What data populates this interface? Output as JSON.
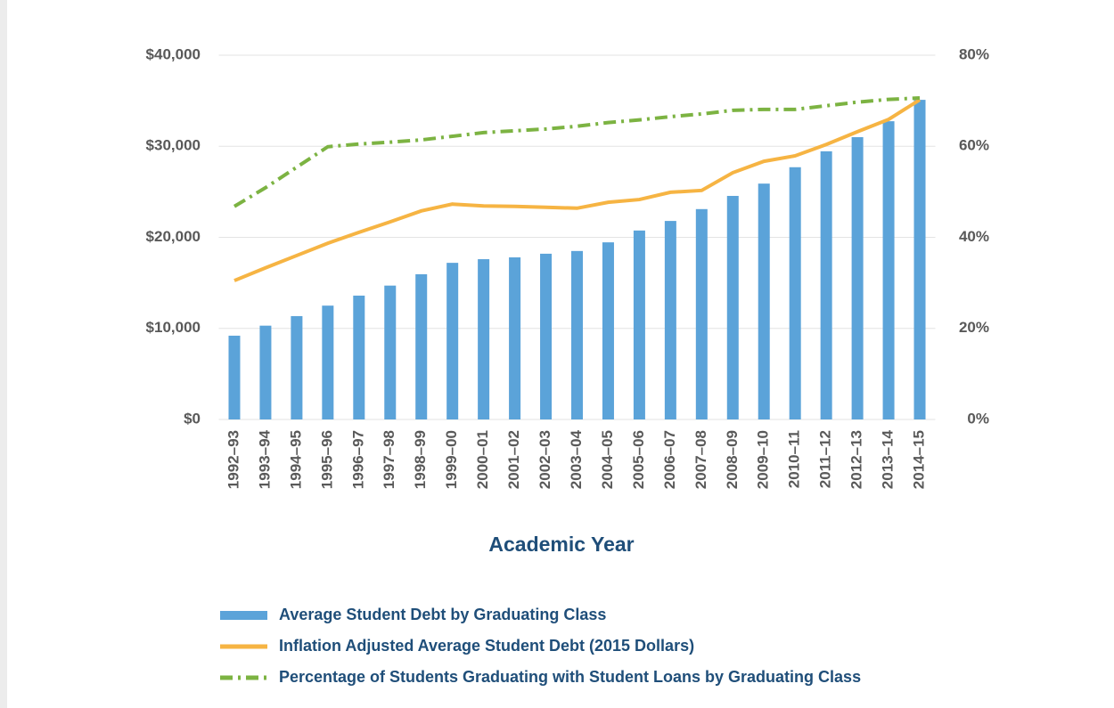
{
  "chart_data": {
    "type": "bar",
    "x_label": "Academic Year",
    "categories": [
      "1992–93",
      "1993–94",
      "1994–95",
      "1995–96",
      "1996–97",
      "1997–98",
      "1998–99",
      "1999–00",
      "2000–01",
      "2001–02",
      "2002–03",
      "2003–04",
      "2004–05",
      "2005–06",
      "2006–07",
      "2007–08",
      "2008–09",
      "2009–10",
      "2010–11",
      "2011–12",
      "2012–13",
      "2013–14",
      "2014–15"
    ],
    "series": [
      {
        "name": "Average Student Debt by Graduating Class",
        "type": "bar",
        "color": "#5ba3d9",
        "values": [
          9200,
          10300,
          11350,
          12500,
          13600,
          14700,
          15950,
          17200,
          17600,
          17800,
          18200,
          18500,
          19450,
          20750,
          21800,
          23100,
          24550,
          25900,
          27700,
          29450,
          31000,
          32750,
          35100
        ]
      },
      {
        "name": "Inflation Adjusted Average Student Debt (2015 Dollars)",
        "type": "line",
        "color": "#f6b443",
        "linestyle": "solid",
        "values": [
          15250,
          16650,
          18000,
          19350,
          20550,
          21700,
          22900,
          23650,
          23450,
          23400,
          23300,
          23200,
          23850,
          24150,
          24950,
          25150,
          27100,
          28350,
          28950,
          30200,
          31600,
          32950,
          35100
        ]
      },
      {
        "name": "Percentage of Students Graduating with Student Loans by Graduating Class",
        "type": "line",
        "color": "#7cb342",
        "linestyle": "dash-dot",
        "axis": "y2",
        "values": [
          46.8,
          50.9,
          55.4,
          59.9,
          60.5,
          60.9,
          61.4,
          62.2,
          63,
          63.4,
          63.8,
          64.4,
          65.2,
          65.8,
          66.5,
          67.1,
          67.9,
          68.1,
          68.1,
          68.9,
          69.7,
          70.3,
          70.6
        ]
      }
    ],
    "ylim": [
      0,
      40000
    ],
    "yticks": [
      {
        "value": 0,
        "label": "$0"
      },
      {
        "value": 10000,
        "label": "$10,000"
      },
      {
        "value": 20000,
        "label": "$20,000"
      },
      {
        "value": 30000,
        "label": "$30,000"
      },
      {
        "value": 40000,
        "label": "$40,000"
      }
    ],
    "y2lim": [
      0,
      80
    ],
    "y2ticks": [
      {
        "value": 0,
        "label": "0%"
      },
      {
        "value": 20,
        "label": "20%"
      },
      {
        "value": 40,
        "label": "40%"
      },
      {
        "value": 60,
        "label": "60%"
      },
      {
        "value": 80,
        "label": "80%"
      }
    ],
    "grid": true,
    "legend": "bottom"
  }
}
